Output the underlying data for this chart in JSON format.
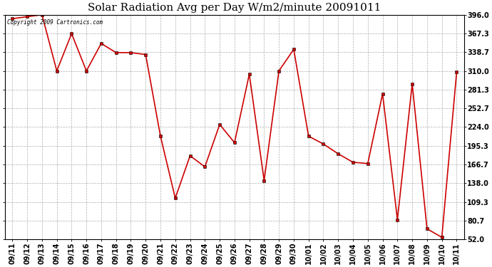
{
  "title": "Solar Radiation Avg per Day W/m2/minute 20091011",
  "copyright_text": "Copyright 2009 Cartronics.com",
  "labels": [
    "09/11",
    "09/12",
    "09/13",
    "09/14",
    "09/15",
    "09/16",
    "09/17",
    "09/18",
    "09/19",
    "09/20",
    "09/21",
    "09/22",
    "09/23",
    "09/24",
    "09/25",
    "09/26",
    "09/27",
    "09/28",
    "09/29",
    "09/30",
    "10/01",
    "10/02",
    "10/03",
    "10/04",
    "10/05",
    "10/06",
    "10/07",
    "10/08",
    "10/09",
    "10/10",
    "10/11"
  ],
  "values": [
    390,
    393,
    396,
    310,
    367,
    310,
    352,
    338,
    338,
    335,
    210,
    115,
    180,
    163,
    228,
    200,
    305,
    142,
    310,
    343,
    210,
    198,
    183,
    170,
    168,
    275,
    82,
    290,
    68,
    55,
    308
  ],
  "ylim": [
    52.0,
    396.0
  ],
  "yticks": [
    52.0,
    80.7,
    109.3,
    138.0,
    166.7,
    195.3,
    224.0,
    252.7,
    281.3,
    310.0,
    338.7,
    367.3,
    396.0
  ],
  "line_color": "#cc0000",
  "marker_color": "#000000",
  "bg_color": "#ffffff",
  "grid_color": "#999999",
  "title_fontsize": 11,
  "label_fontsize": 7,
  "copyright_fontsize": 5.5,
  "fig_width": 6.9,
  "fig_height": 3.75,
  "dpi": 100
}
